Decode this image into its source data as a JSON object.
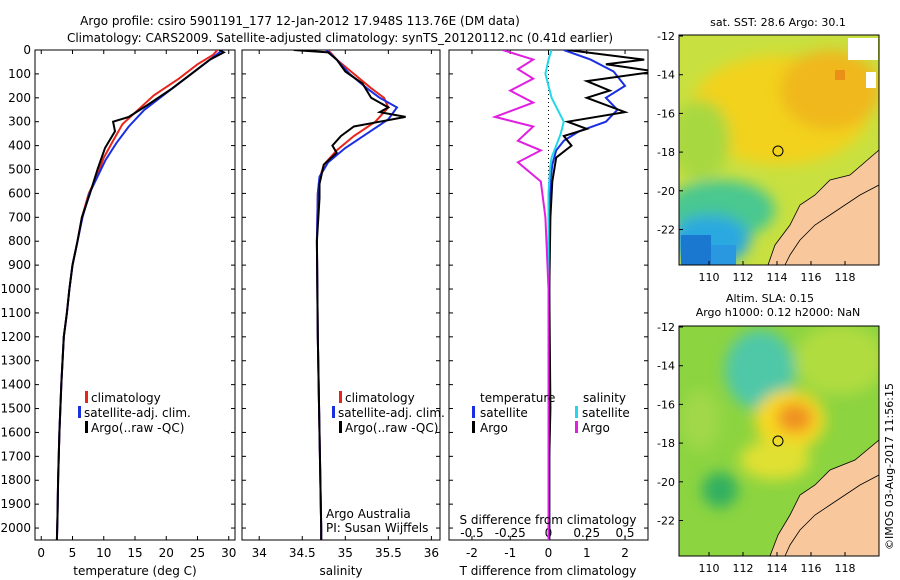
{
  "header": {
    "line1": "Argo profile: csiro 5901191_177 12-Jan-2012 17.948S 113.76E (DM data)",
    "line2": "Climatology: CARS2009. Satellite-adjusted climatology: synTS_20120112.nc (0.41d earlier)"
  },
  "colors": {
    "climatology": "#e8251b",
    "satellite": "#1a2fe0",
    "argo": "#000000",
    "sat_salinity": "#22d8e8",
    "argo_salinity": "#e020e0",
    "land": "#f8c89c"
  },
  "chart_data": [
    {
      "type": "line",
      "xlabel": "temperature (deg C)",
      "ylim": [
        2050,
        0
      ],
      "xlim": [
        -1,
        31
      ],
      "xticks": [
        0,
        5,
        10,
        15,
        20,
        25,
        30
      ],
      "yticks": [
        0,
        100,
        200,
        300,
        400,
        500,
        600,
        700,
        800,
        900,
        1000,
        1100,
        1200,
        1300,
        1400,
        1500,
        1600,
        1700,
        1800,
        1900,
        2000
      ],
      "legend": [
        "climatology",
        "satellite-adj. clim.",
        "Argo(..raw -QC)"
      ],
      "series": [
        {
          "name": "climatology",
          "x": [
            28.2,
            27.5,
            25,
            22,
            18,
            15.5,
            13,
            11.5,
            10,
            8.9,
            7.6,
            6.5,
            5.8,
            5,
            4.5,
            4.1,
            3.6,
            3.2,
            2.9,
            2.7,
            2.6,
            2.5
          ],
          "y": [
            0,
            20,
            60,
            120,
            190,
            250,
            310,
            380,
            450,
            530,
            600,
            700,
            800,
            900,
            1000,
            1100,
            1200,
            1400,
            1600,
            1800,
            1950,
            2050
          ]
        },
        {
          "name": "satellite-adj. clim.",
          "x": [
            29,
            28,
            26,
            23,
            19.5,
            16.5,
            14,
            12,
            10.3,
            9,
            7.7,
            6.6,
            5.8,
            5,
            4.5,
            4.1,
            3.6,
            3.2,
            2.9,
            2.7,
            2.6,
            2.5
          ],
          "y": [
            0,
            20,
            60,
            120,
            190,
            250,
            320,
            390,
            460,
            530,
            600,
            700,
            800,
            900,
            1000,
            1100,
            1200,
            1400,
            1600,
            1800,
            1950,
            2050
          ]
        },
        {
          "name": "Argo(..raw -QC)",
          "x": [
            28.5,
            29.2,
            27,
            24,
            21,
            17,
            14,
            11.5,
            11.8,
            10.2,
            9,
            7.8,
            6.5,
            5.8,
            5,
            4.5,
            4.1,
            3.6,
            3.2,
            2.9,
            2.7,
            2.6,
            2.5
          ],
          "y": [
            0,
            10,
            40,
            100,
            160,
            230,
            280,
            300,
            340,
            410,
            500,
            600,
            700,
            800,
            900,
            1000,
            1100,
            1200,
            1400,
            1600,
            1800,
            1950,
            2050
          ]
        }
      ]
    },
    {
      "type": "line",
      "xlabel": "salinity",
      "ylim": [
        2050,
        0
      ],
      "xlim": [
        33.8,
        36.1
      ],
      "xticks": [
        34,
        34.5,
        35,
        35.5,
        36
      ],
      "xticklabels": [
        "34",
        "34.5",
        "35",
        "35.5",
        "36"
      ],
      "legend": [
        "climatology",
        "satellite-adj. clim.",
        "Argo(..raw -QC)"
      ],
      "annotation": [
        "Argo Australia",
        "PI: Susan Wijffels"
      ],
      "series": [
        {
          "name": "climatology",
          "x": [
            34.8,
            34.9,
            35.1,
            35.3,
            35.45,
            35.5,
            35.35,
            35.1,
            34.9,
            34.75,
            34.7,
            34.68,
            34.67,
            34.68,
            34.7,
            34.72,
            34.72
          ],
          "y": [
            0,
            40,
            100,
            160,
            200,
            240,
            300,
            360,
            420,
            480,
            540,
            600,
            800,
            1200,
            1600,
            2000,
            2050
          ]
        },
        {
          "name": "satellite-adj. clim.",
          "x": [
            34.78,
            34.9,
            35.05,
            35.25,
            35.4,
            35.6,
            35.5,
            35.25,
            35,
            34.8,
            34.7,
            34.68,
            34.67,
            34.68,
            34.7,
            34.72,
            34.72
          ],
          "y": [
            0,
            40,
            100,
            160,
            200,
            240,
            290,
            350,
            410,
            470,
            530,
            600,
            800,
            1200,
            1600,
            2000,
            2050
          ]
        },
        {
          "name": "Argo(..raw -QC)",
          "x": [
            34.4,
            34.8,
            34.9,
            35,
            35.2,
            35.3,
            35.5,
            35.4,
            35.7,
            35.4,
            35.1,
            34.95,
            34.85,
            34.9,
            34.75,
            34.7,
            34.7,
            34.67,
            34.68,
            34.7,
            34.72,
            34.72
          ],
          "y": [
            0,
            10,
            40,
            90,
            140,
            200,
            240,
            260,
            280,
            300,
            320,
            360,
            400,
            430,
            480,
            560,
            620,
            800,
            1200,
            1600,
            2000,
            2050
          ]
        }
      ]
    },
    {
      "type": "line",
      "xlabel": "T difference from climatology",
      "xlabel_top": "S difference from climatology",
      "ylim": [
        2050,
        0
      ],
      "xlim": [
        -2.6,
        2.6
      ],
      "xticks": [
        -2,
        -1,
        0,
        1,
        2
      ],
      "xticklabels": [
        "-2",
        "-1",
        "0",
        "1",
        "2"
      ],
      "sticks": [
        -0.5,
        -0.25,
        0,
        0.25,
        0.5
      ],
      "sticklabels": [
        "-0.5",
        "-0.25",
        "0",
        "0.25",
        "0.5"
      ],
      "s_per_t": 0.25,
      "legend_titles": [
        "temperature",
        "salinity"
      ],
      "legend": [
        "satellite",
        "Argo",
        "satellite",
        "Argo"
      ],
      "series": [
        {
          "name": "satellite",
          "kind": "T",
          "x": [
            0.4,
            1.1,
            1.7,
            2.0,
            1.5,
            1.8,
            1.5,
            0.8,
            0.4,
            0.2,
            0.1,
            0.05,
            0.03,
            0.02,
            0.02,
            0.02
          ],
          "y": [
            0,
            40,
            90,
            150,
            200,
            250,
            300,
            340,
            380,
            420,
            480,
            550,
            700,
            1000,
            1500,
            2050
          ]
        },
        {
          "name": "Argo",
          "kind": "T",
          "x": [
            0.5,
            2.5,
            1.5,
            2.8,
            1.0,
            1.6,
            1.0,
            2.0,
            0.5,
            1.0,
            0.4,
            0.6,
            0.2,
            0.1,
            0.05,
            0.02,
            0.05,
            0.02,
            0.02
          ],
          "y": [
            0,
            40,
            60,
            90,
            130,
            170,
            200,
            260,
            300,
            330,
            360,
            400,
            450,
            550,
            700,
            1000,
            1500,
            1700,
            2050
          ]
        },
        {
          "name": "satellite",
          "kind": "S",
          "x": [
            0.02,
            0.0,
            -0.02,
            0.0,
            0.02,
            0.06,
            0.1,
            0.08,
            0.05,
            0.02,
            0.01,
            0.0,
            0.0,
            0.0,
            0.0
          ],
          "y": [
            0,
            40,
            100,
            150,
            200,
            250,
            300,
            350,
            400,
            450,
            500,
            600,
            1000,
            1500,
            2050
          ]
        },
        {
          "name": "Argo",
          "kind": "S",
          "x": [
            -0.3,
            -0.1,
            -0.2,
            -0.1,
            -0.25,
            -0.1,
            -0.35,
            -0.1,
            -0.2,
            -0.05,
            -0.2,
            -0.05,
            -0.02,
            0.0,
            0.0
          ],
          "y": [
            0,
            40,
            80,
            120,
            170,
            220,
            280,
            320,
            380,
            420,
            470,
            550,
            700,
            1000,
            2050
          ]
        }
      ]
    }
  ],
  "maps": [
    {
      "title": "sat. SST: 28.6  Argo: 30.1",
      "xticks": [
        "110",
        "112",
        "114",
        "116",
        "118"
      ],
      "yticks": [
        "-12",
        "-14",
        "-16",
        "-18",
        "-20",
        "-22"
      ]
    },
    {
      "title1": "Altim. SLA: 0.15",
      "title2": "Argo h1000: 0.12  h2000: NaN",
      "xticks": [
        "110",
        "112",
        "114",
        "116",
        "118"
      ],
      "yticks": [
        "-12",
        "-14",
        "-16",
        "-18",
        "-20",
        "-22"
      ]
    }
  ],
  "footer": "©IMOS 03-Aug-2017 11:56:15"
}
